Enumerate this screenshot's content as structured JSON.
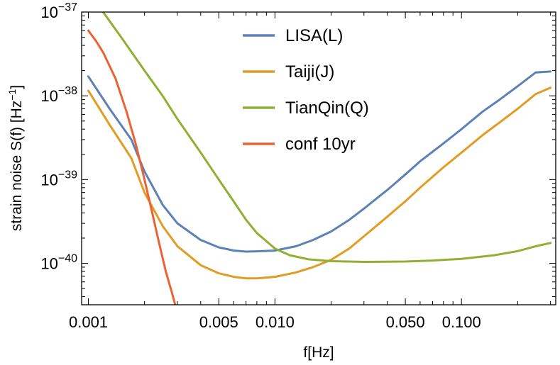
{
  "chart_data": {
    "type": "line",
    "title": "",
    "xlabel": "f[Hz]",
    "ylabel": "strain noise S(f) [Hz",
    "ylabel_exponent": "−1",
    "ylabel_suffix": "]",
    "x_scale": "log",
    "y_scale": "log",
    "xlim": [
      0.00092,
      0.32
    ],
    "ylim": [
      3.2e-41,
      1e-37
    ],
    "grid": false,
    "legend_position": "top-center",
    "x_ticks": [
      {
        "value": 0.001,
        "label": "0.001"
      },
      {
        "value": 0.005,
        "label": "0.005"
      },
      {
        "value": 0.01,
        "label": "0.010"
      },
      {
        "value": 0.05,
        "label": "0.050"
      },
      {
        "value": 0.1,
        "label": "0.100"
      }
    ],
    "y_ticks": [
      {
        "value": 1e-40,
        "base": "10",
        "exp": "−40"
      },
      {
        "value": 1e-39,
        "base": "10",
        "exp": "−39"
      },
      {
        "value": 1e-38,
        "base": "10",
        "exp": "−38"
      },
      {
        "value": 1e-37,
        "base": "10",
        "exp": "−37"
      }
    ],
    "series": [
      {
        "name": "LISA(L)",
        "color": "#5e81b5",
        "x": [
          0.001,
          0.0013,
          0.0017,
          0.002,
          0.0025,
          0.003,
          0.004,
          0.005,
          0.006,
          0.007,
          0.008,
          0.01,
          0.013,
          0.016,
          0.02,
          0.025,
          0.03,
          0.04,
          0.05,
          0.06,
          0.08,
          0.1,
          0.13,
          0.16,
          0.2,
          0.25,
          0.3
        ],
        "y": [
          1.7e-38,
          7e-39,
          3e-39,
          1.25e-39,
          5e-40,
          3e-40,
          1.9e-40,
          1.55e-40,
          1.42e-40,
          1.38e-40,
          1.39e-40,
          1.42e-40,
          1.6e-40,
          1.9e-40,
          2.4e-40,
          3.3e-40,
          4.5e-40,
          7.5e-40,
          1.15e-39,
          1.65e-39,
          2.7e-39,
          4e-39,
          6.5e-39,
          9e-39,
          1.3e-38,
          1.9e-38,
          1.95e-38
        ]
      },
      {
        "name": "Taiji(J)",
        "color": "#e19c24",
        "x": [
          0.001,
          0.0013,
          0.0017,
          0.002,
          0.0025,
          0.003,
          0.004,
          0.005,
          0.006,
          0.007,
          0.008,
          0.01,
          0.013,
          0.016,
          0.02,
          0.025,
          0.03,
          0.04,
          0.05,
          0.06,
          0.08,
          0.1,
          0.13,
          0.16,
          0.2,
          0.25,
          0.3
        ],
        "y": [
          1.15e-38,
          4.5e-39,
          1.8e-39,
          7e-40,
          2.8e-40,
          1.6e-40,
          9.5e-41,
          7.6e-41,
          6.9e-41,
          6.6e-41,
          6.6e-41,
          6.9e-41,
          7.8e-41,
          9e-41,
          1.1e-40,
          1.5e-40,
          2.1e-40,
          3.6e-40,
          5.5e-40,
          8e-40,
          1.4e-39,
          2.1e-39,
          3.4e-39,
          4.8e-39,
          7e-39,
          1.05e-38,
          1.25e-38
        ]
      },
      {
        "name": "TianQin(Q)",
        "color": "#8fb032",
        "x": [
          0.0012,
          0.0015,
          0.002,
          0.0025,
          0.003,
          0.004,
          0.005,
          0.006,
          0.007,
          0.008,
          0.01,
          0.012,
          0.015,
          0.02,
          0.03,
          0.05,
          0.07,
          0.1,
          0.15,
          0.2,
          0.25,
          0.3
        ],
        "y": [
          1e-37,
          5e-38,
          2e-38,
          1e-38,
          5.3e-39,
          2.1e-39,
          1e-39,
          5.5e-40,
          3.3e-40,
          2.3e-40,
          1.5e-40,
          1.25e-40,
          1.12e-40,
          1.06e-40,
          1.04e-40,
          1.05e-40,
          1.08e-40,
          1.13e-40,
          1.25e-40,
          1.4e-40,
          1.6e-40,
          1.75e-40
        ]
      },
      {
        "name": "conf 10yr",
        "color": "#eb6235",
        "x": [
          0.001,
          0.0011,
          0.0012,
          0.0014,
          0.0016,
          0.0018,
          0.002,
          0.0022,
          0.0024,
          0.0026,
          0.0028,
          0.00292
        ],
        "y": [
          6e-38,
          4.5e-38,
          3.3e-38,
          1.6e-38,
          6.5e-39,
          2.6e-39,
          1e-39,
          4e-40,
          1.7e-40,
          8e-41,
          4.5e-41,
          3.2e-41
        ]
      }
    ]
  }
}
